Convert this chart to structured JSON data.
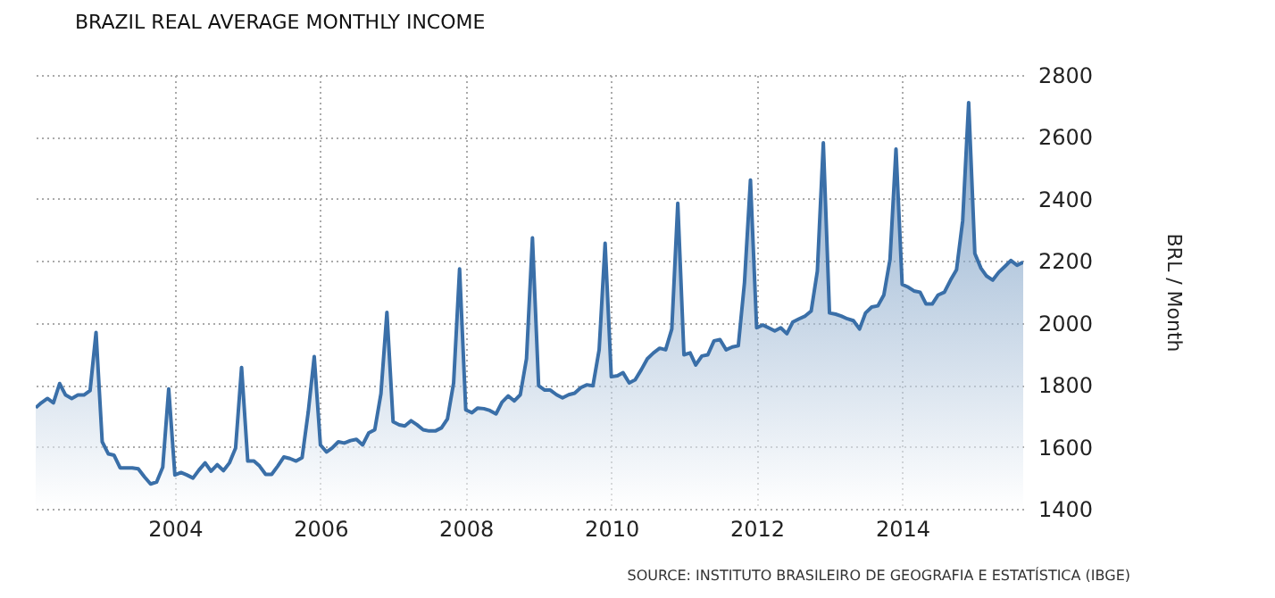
{
  "chart_data": {
    "type": "area",
    "title": "BRAZIL REAL AVERAGE MONTHLY INCOME",
    "ylabel": "BRL / Month",
    "annotations": [
      "SOURCE: INSTITUTO BRASILEIRO DE GEOGRAFIA E ESTATÍSTICA (IBGE)"
    ],
    "x": [
      "2002-02",
      "2002-03",
      "2002-04",
      "2002-05",
      "2002-06",
      "2002-07",
      "2002-08",
      "2002-09",
      "2002-10",
      "2002-11",
      "2002-12",
      "2003-01",
      "2003-02",
      "2003-03",
      "2003-04",
      "2003-05",
      "2003-06",
      "2003-07",
      "2003-08",
      "2003-09",
      "2003-10",
      "2003-11",
      "2003-12",
      "2004-01",
      "2004-02",
      "2004-03",
      "2004-04",
      "2004-05",
      "2004-06",
      "2004-07",
      "2004-08",
      "2004-09",
      "2004-10",
      "2004-11",
      "2004-12",
      "2005-01",
      "2005-02",
      "2005-03",
      "2005-04",
      "2005-05",
      "2005-06",
      "2005-07",
      "2005-08",
      "2005-09",
      "2005-10",
      "2005-11",
      "2005-12",
      "2006-01",
      "2006-02",
      "2006-03",
      "2006-04",
      "2006-05",
      "2006-06",
      "2006-07",
      "2006-08",
      "2006-09",
      "2006-10",
      "2006-11",
      "2006-12",
      "2007-01",
      "2007-02",
      "2007-03",
      "2007-04",
      "2007-05",
      "2007-06",
      "2007-07",
      "2007-08",
      "2007-09",
      "2007-10",
      "2007-11",
      "2007-12",
      "2008-01",
      "2008-02",
      "2008-03",
      "2008-04",
      "2008-05",
      "2008-06",
      "2008-07",
      "2008-08",
      "2008-09",
      "2008-10",
      "2008-11",
      "2008-12",
      "2009-01",
      "2009-02",
      "2009-03",
      "2009-04",
      "2009-05",
      "2009-06",
      "2009-07",
      "2009-08",
      "2009-09",
      "2009-10",
      "2009-11",
      "2009-12",
      "2010-01",
      "2010-02",
      "2010-03",
      "2010-04",
      "2010-05",
      "2010-06",
      "2010-07",
      "2010-08",
      "2010-09",
      "2010-10",
      "2010-11",
      "2010-12",
      "2011-01",
      "2011-02",
      "2011-03",
      "2011-04",
      "2011-05",
      "2011-06",
      "2011-07",
      "2011-08",
      "2011-09",
      "2011-10",
      "2011-11",
      "2011-12",
      "2012-01",
      "2012-02",
      "2012-03",
      "2012-04",
      "2012-05",
      "2012-06",
      "2012-07",
      "2012-08",
      "2012-09",
      "2012-10",
      "2012-11",
      "2012-12",
      "2013-01",
      "2013-02",
      "2013-03",
      "2013-04",
      "2013-05",
      "2013-06",
      "2013-07",
      "2013-08",
      "2013-09",
      "2013-10",
      "2013-11",
      "2013-12",
      "2014-01",
      "2014-02",
      "2014-03",
      "2014-04",
      "2014-05",
      "2014-06",
      "2014-07",
      "2014-08",
      "2014-09",
      "2014-10",
      "2014-11",
      "2014-12",
      "2015-01",
      "2015-02",
      "2015-03",
      "2015-04",
      "2015-05",
      "2015-06",
      "2015-07",
      "2015-08",
      "2015-09"
    ],
    "series": [
      {
        "color": "#3a6fa8",
        "values": [
          1726,
          1742,
          1756,
          1742,
          1804,
          1767,
          1756,
          1767,
          1767,
          1781,
          1969,
          1616,
          1577,
          1573,
          1532,
          1532,
          1532,
          1529,
          1503,
          1480,
          1486,
          1534,
          1787,
          1509,
          1517,
          1509,
          1499,
          1525,
          1548,
          1521,
          1542,
          1523,
          1548,
          1596,
          1856,
          1554,
          1554,
          1538,
          1511,
          1511,
          1538,
          1567,
          1562,
          1554,
          1565,
          1713,
          1891,
          1606,
          1583,
          1596,
          1616,
          1612,
          1620,
          1624,
          1606,
          1645,
          1655,
          1771,
          2034,
          1681,
          1671,
          1667,
          1684,
          1671,
          1655,
          1651,
          1651,
          1661,
          1690,
          1806,
          2174,
          1719,
          1710,
          1725,
          1723,
          1717,
          1706,
          1744,
          1764,
          1748,
          1768,
          1884,
          2274,
          1797,
          1783,
          1783,
          1768,
          1758,
          1768,
          1773,
          1791,
          1800,
          1797,
          1913,
          2257,
          1826,
          1829,
          1839,
          1806,
          1816,
          1849,
          1884,
          1903,
          1918,
          1913,
          1980,
          2386,
          1897,
          1903,
          1864,
          1893,
          1897,
          1942,
          1946,
          1913,
          1922,
          1926,
          2130,
          2461,
          1984,
          1993,
          1984,
          1974,
          1984,
          1965,
          2003,
          2013,
          2022,
          2038,
          2167,
          2581,
          2032,
          2028,
          2022,
          2013,
          2007,
          1980,
          2032,
          2051,
          2055,
          2090,
          2205,
          2561,
          2124,
          2115,
          2103,
          2099,
          2061,
          2061,
          2090,
          2099,
          2138,
          2171,
          2330,
          2711,
          2224,
          2176,
          2151,
          2138,
          2163,
          2182,
          2201,
          2186,
          2196
        ]
      }
    ],
    "xlim": [
      "2002-02",
      "2015-09"
    ],
    "xticks": [
      "2004",
      "2006",
      "2008",
      "2010",
      "2012",
      "2014"
    ],
    "ylim": [
      1400,
      2800
    ],
    "yticks": [
      1400,
      1600,
      1800,
      2000,
      2200,
      2400,
      2600,
      2800
    ],
    "grid": true
  }
}
